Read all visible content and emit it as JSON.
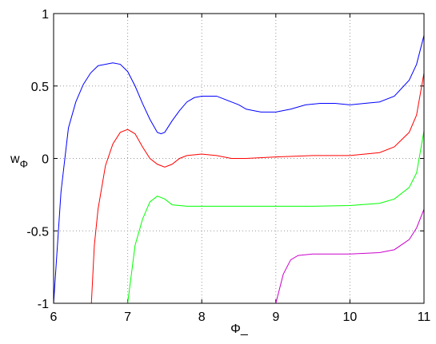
{
  "chart_data": {
    "type": "line",
    "xlabel": "Φ_",
    "ylabel_base": "w",
    "ylabel_sub": "Φ",
    "xlim": [
      6,
      11
    ],
    "ylim": [
      -1,
      1
    ],
    "xticks": [
      6,
      7,
      8,
      9,
      10,
      11
    ],
    "yticks": [
      -1,
      -0.5,
      0,
      0.5,
      1
    ],
    "grid": true,
    "series": [
      {
        "color": "#0000ff",
        "x": [
          6,
          6.1,
          6.2,
          6.3,
          6.4,
          6.5,
          6.6,
          6.8,
          6.9,
          7.0,
          7.1,
          7.2,
          7.3,
          7.4,
          7.45,
          7.5,
          7.6,
          7.7,
          7.8,
          7.9,
          8.0,
          8.1,
          8.2,
          8.3,
          8.4,
          8.5,
          8.6,
          8.7,
          8.8,
          8.9,
          9.0,
          9.2,
          9.4,
          9.6,
          9.8,
          10.0,
          10.2,
          10.4,
          10.6,
          10.8,
          10.9,
          11
        ],
        "values": [
          -1,
          -0.23,
          0.21,
          0.39,
          0.51,
          0.59,
          0.64,
          0.66,
          0.65,
          0.6,
          0.5,
          0.38,
          0.27,
          0.18,
          0.17,
          0.18,
          0.26,
          0.33,
          0.39,
          0.42,
          0.43,
          0.43,
          0.43,
          0.41,
          0.39,
          0.37,
          0.34,
          0.33,
          0.32,
          0.32,
          0.32,
          0.34,
          0.37,
          0.38,
          0.38,
          0.37,
          0.38,
          0.39,
          0.43,
          0.54,
          0.65,
          0.85
        ]
      },
      {
        "color": "#ff0000",
        "x": [
          6.51,
          6.55,
          6.6,
          6.7,
          6.8,
          6.9,
          7.0,
          7.1,
          7.2,
          7.3,
          7.4,
          7.5,
          7.6,
          7.7,
          7.8,
          8.0,
          8.2,
          8.4,
          8.6,
          9.0,
          9.5,
          10.0,
          10.4,
          10.6,
          10.8,
          10.9,
          11
        ],
        "values": [
          -1,
          -0.6,
          -0.35,
          -0.05,
          0.1,
          0.18,
          0.2,
          0.17,
          0.08,
          0.0,
          -0.04,
          -0.06,
          -0.04,
          0.0,
          0.02,
          0.03,
          0.02,
          0.0,
          0.0,
          0.01,
          0.02,
          0.02,
          0.04,
          0.08,
          0.18,
          0.3,
          0.59
        ]
      },
      {
        "color": "#00ff00",
        "x": [
          7.0,
          7.05,
          7.1,
          7.2,
          7.3,
          7.4,
          7.5,
          7.6,
          7.8,
          8.5,
          9.5,
          10.0,
          10.4,
          10.6,
          10.8,
          10.9,
          11
        ],
        "values": [
          -1,
          -0.8,
          -0.6,
          -0.42,
          -0.3,
          -0.26,
          -0.28,
          -0.32,
          -0.33,
          -0.33,
          -0.33,
          -0.325,
          -0.31,
          -0.28,
          -0.2,
          -0.1,
          0.19
        ]
      },
      {
        "color": "#cc00cc",
        "x": [
          9.0,
          9.1,
          9.2,
          9.3,
          9.5,
          10.0,
          10.4,
          10.6,
          10.8,
          10.9,
          11
        ],
        "values": [
          -1,
          -0.8,
          -0.7,
          -0.67,
          -0.66,
          -0.66,
          -0.65,
          -0.63,
          -0.56,
          -0.48,
          -0.35
        ]
      }
    ]
  }
}
